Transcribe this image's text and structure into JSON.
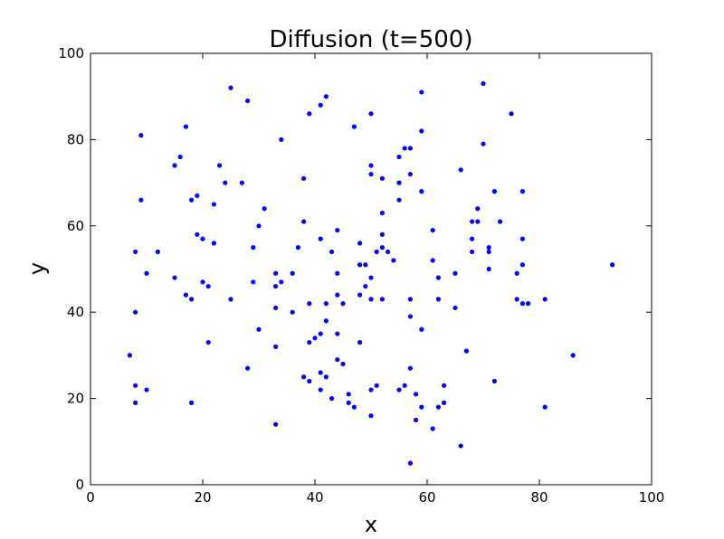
{
  "chart_data": {
    "type": "scatter",
    "title": "Diffusion (t=500)",
    "xlabel": "x",
    "ylabel": "y",
    "xlim": [
      0,
      100
    ],
    "ylim": [
      0,
      100
    ],
    "x_ticks": [
      "0",
      "20",
      "40",
      "60",
      "80",
      "100"
    ],
    "y_ticks": [
      "0",
      "20",
      "40",
      "60",
      "80",
      "100"
    ],
    "grid": false,
    "marker_color": "#0000ff",
    "points": [
      [
        7,
        30
      ],
      [
        8,
        54
      ],
      [
        8,
        40
      ],
      [
        8,
        23
      ],
      [
        8,
        19
      ],
      [
        9,
        81
      ],
      [
        9,
        66
      ],
      [
        10,
        49
      ],
      [
        10,
        22
      ],
      [
        12,
        54
      ],
      [
        15,
        74
      ],
      [
        15,
        48
      ],
      [
        16,
        76
      ],
      [
        17,
        83
      ],
      [
        17,
        44
      ],
      [
        18,
        66
      ],
      [
        18,
        43
      ],
      [
        18,
        19
      ],
      [
        19,
        67
      ],
      [
        19,
        58
      ],
      [
        20,
        57
      ],
      [
        20,
        47
      ],
      [
        21,
        46
      ],
      [
        21,
        33
      ],
      [
        22,
        65
      ],
      [
        22,
        56
      ],
      [
        23,
        74
      ],
      [
        24,
        70
      ],
      [
        25,
        92
      ],
      [
        25,
        43
      ],
      [
        27,
        70
      ],
      [
        28,
        89
      ],
      [
        28,
        27
      ],
      [
        29,
        55
      ],
      [
        29,
        47
      ],
      [
        30,
        60
      ],
      [
        30,
        36
      ],
      [
        31,
        64
      ],
      [
        33,
        49
      ],
      [
        33,
        46
      ],
      [
        33,
        41
      ],
      [
        33,
        32
      ],
      [
        33,
        14
      ],
      [
        34,
        80
      ],
      [
        34,
        47
      ],
      [
        36,
        49
      ],
      [
        36,
        40
      ],
      [
        37,
        55
      ],
      [
        38,
        71
      ],
      [
        38,
        61
      ],
      [
        38,
        25
      ],
      [
        39,
        86
      ],
      [
        39,
        42
      ],
      [
        39,
        33
      ],
      [
        39,
        24
      ],
      [
        40,
        34
      ],
      [
        41,
        88
      ],
      [
        41,
        57
      ],
      [
        41,
        35
      ],
      [
        41,
        26
      ],
      [
        41,
        22
      ],
      [
        42,
        90
      ],
      [
        42,
        42
      ],
      [
        42,
        38
      ],
      [
        42,
        25
      ],
      [
        43,
        54
      ],
      [
        43,
        20
      ],
      [
        44,
        59
      ],
      [
        44,
        49
      ],
      [
        44,
        44
      ],
      [
        44,
        35
      ],
      [
        44,
        29
      ],
      [
        45,
        42
      ],
      [
        45,
        28
      ],
      [
        46,
        21
      ],
      [
        46,
        19
      ],
      [
        47,
        83
      ],
      [
        47,
        18
      ],
      [
        48,
        56
      ],
      [
        48,
        51
      ],
      [
        48,
        44
      ],
      [
        48,
        33
      ],
      [
        49,
        51
      ],
      [
        49,
        46
      ],
      [
        50,
        86
      ],
      [
        50,
        74
      ],
      [
        50,
        72
      ],
      [
        50,
        48
      ],
      [
        50,
        43
      ],
      [
        50,
        22
      ],
      [
        50,
        16
      ],
      [
        51,
        54
      ],
      [
        51,
        23
      ],
      [
        52,
        71
      ],
      [
        52,
        63
      ],
      [
        52,
        58
      ],
      [
        52,
        55
      ],
      [
        52,
        43
      ],
      [
        53,
        54
      ],
      [
        54,
        52
      ],
      [
        55,
        76
      ],
      [
        55,
        70
      ],
      [
        55,
        66
      ],
      [
        55,
        22
      ],
      [
        56,
        78
      ],
      [
        56,
        23
      ],
      [
        57,
        78
      ],
      [
        57,
        72
      ],
      [
        57,
        43
      ],
      [
        57,
        39
      ],
      [
        57,
        27
      ],
      [
        57,
        5
      ],
      [
        58,
        21
      ],
      [
        58,
        15
      ],
      [
        59,
        91
      ],
      [
        59,
        82
      ],
      [
        59,
        68
      ],
      [
        59,
        36
      ],
      [
        59,
        18
      ],
      [
        61,
        59
      ],
      [
        61,
        52
      ],
      [
        61,
        13
      ],
      [
        62,
        48
      ],
      [
        62,
        43
      ],
      [
        62,
        18
      ],
      [
        63,
        23
      ],
      [
        63,
        19
      ],
      [
        65,
        49
      ],
      [
        65,
        41
      ],
      [
        66,
        73
      ],
      [
        66,
        9
      ],
      [
        67,
        31
      ],
      [
        68,
        61
      ],
      [
        68,
        57
      ],
      [
        68,
        54
      ],
      [
        69,
        64
      ],
      [
        69,
        61
      ],
      [
        70,
        93
      ],
      [
        70,
        79
      ],
      [
        71,
        55
      ],
      [
        71,
        54
      ],
      [
        71,
        50
      ],
      [
        72,
        68
      ],
      [
        72,
        24
      ],
      [
        73,
        61
      ],
      [
        75,
        86
      ],
      [
        76,
        49
      ],
      [
        76,
        43
      ],
      [
        77,
        68
      ],
      [
        77,
        57
      ],
      [
        77,
        51
      ],
      [
        77,
        42
      ],
      [
        78,
        42
      ],
      [
        81,
        43
      ],
      [
        81,
        18
      ],
      [
        86,
        30
      ],
      [
        93,
        51
      ]
    ]
  }
}
